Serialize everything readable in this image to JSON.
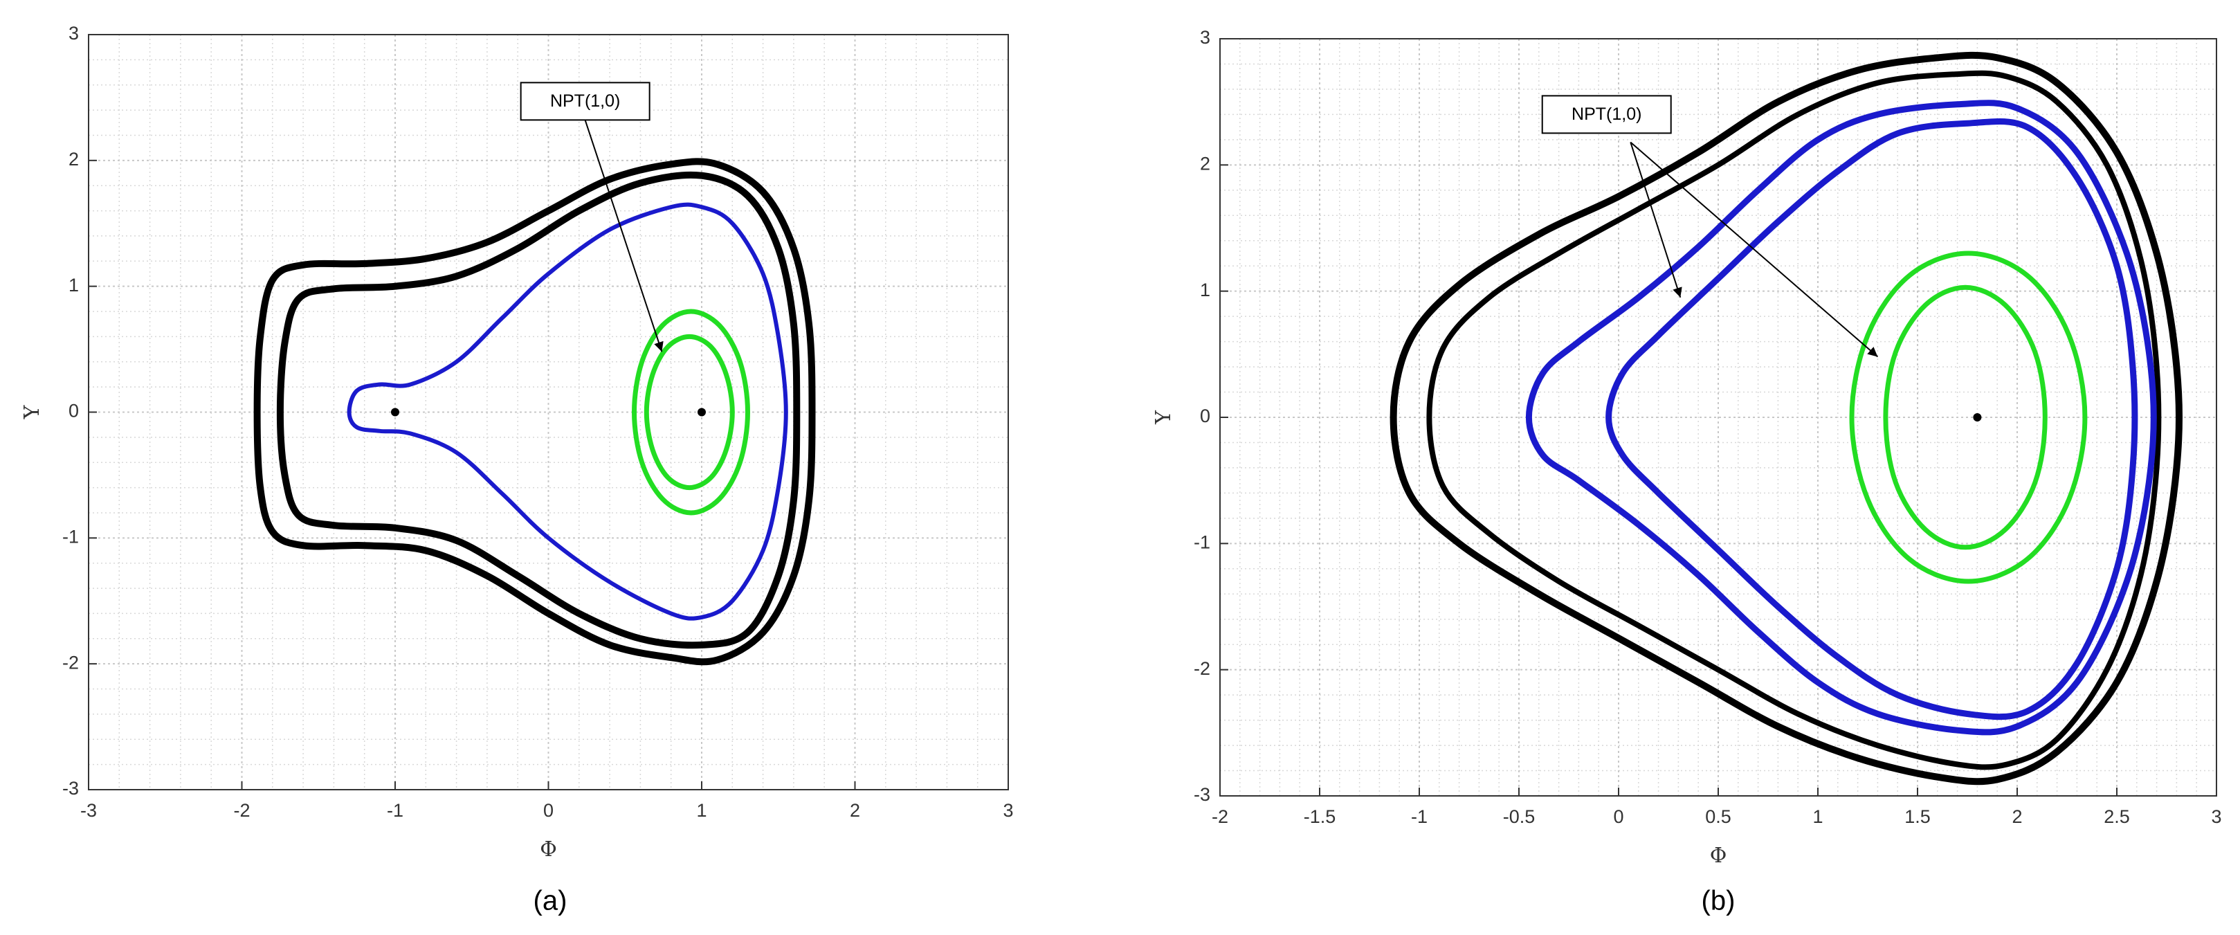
{
  "chart_data": [
    {
      "type": "line",
      "caption": "(a)",
      "xlabel": "Φ",
      "ylabel": "Y",
      "annotation": "NPT(1,0)",
      "xlim": [
        -3,
        3
      ],
      "ylim": [
        -3,
        3
      ],
      "xticks": [
        -3,
        -2,
        -1,
        0,
        1,
        2,
        3
      ],
      "yticks": [
        -3,
        -2,
        -1,
        0,
        1,
        2,
        3
      ],
      "grid": true,
      "minor_grid": true,
      "series": [
        {
          "color": "#000000",
          "line_width": 10,
          "x": [
            -1.9,
            -1.88,
            -1.8,
            -1.6,
            -1.2,
            -0.8,
            -0.4,
            0,
            0.4,
            0.8,
            1.1,
            1.4,
            1.6,
            1.7,
            1.72,
            1.7,
            1.6,
            1.4,
            1.1,
            0.8,
            0.4,
            0,
            -0.4,
            -0.8,
            -1.2,
            -1.6,
            -1.8,
            -1.88,
            -1.9
          ],
          "y": [
            0,
            0.6,
            1.05,
            1.17,
            1.18,
            1.22,
            1.35,
            1.6,
            1.85,
            1.97,
            1.97,
            1.75,
            1.3,
            0.7,
            0,
            -0.7,
            -1.3,
            -1.75,
            -1.97,
            -1.95,
            -1.85,
            -1.6,
            -1.3,
            -1.1,
            -1.06,
            -1.06,
            -0.95,
            -0.6,
            0
          ]
        },
        {
          "color": "#000000",
          "line_width": 10,
          "x": [
            -1.75,
            -1.72,
            -1.63,
            -1.4,
            -1.0,
            -0.6,
            -0.2,
            0.2,
            0.6,
            1.0,
            1.3,
            1.5,
            1.6,
            1.62,
            1.6,
            1.5,
            1.3,
            1.0,
            0.6,
            0.2,
            -0.2,
            -0.6,
            -1.0,
            -1.4,
            -1.63,
            -1.72,
            -1.75
          ],
          "y": [
            0,
            0.55,
            0.9,
            0.98,
            1.0,
            1.08,
            1.3,
            1.6,
            1.82,
            1.88,
            1.72,
            1.3,
            0.7,
            0,
            -0.7,
            -1.3,
            -1.75,
            -1.85,
            -1.8,
            -1.6,
            -1.3,
            -1.02,
            -0.92,
            -0.9,
            -0.82,
            -0.5,
            0
          ]
        },
        {
          "color": "#1a1acc",
          "line_width": 6,
          "x": [
            -1.3,
            -1.25,
            -1.1,
            -0.9,
            -0.6,
            -0.3,
            0,
            0.4,
            0.8,
            1.0,
            1.2,
            1.4,
            1.5,
            1.55,
            1.5,
            1.4,
            1.2,
            1.0,
            0.8,
            0.4,
            0,
            -0.3,
            -0.6,
            -0.9,
            -1.1,
            -1.25,
            -1.3
          ],
          "y": [
            0,
            0.17,
            0.22,
            0.22,
            0.4,
            0.75,
            1.1,
            1.45,
            1.63,
            1.63,
            1.5,
            1.1,
            0.6,
            0,
            -0.6,
            -1.1,
            -1.5,
            -1.63,
            -1.6,
            -1.35,
            -1.0,
            -0.65,
            -0.32,
            -0.17,
            -0.15,
            -0.12,
            0
          ]
        },
        {
          "color": "#22dd22",
          "line_width": 7,
          "x": [
            1.3,
            1.25,
            1.115,
            0.93,
            0.745,
            0.61,
            0.56,
            0.61,
            0.745,
            0.93,
            1.115,
            1.25,
            1.3
          ],
          "y": [
            0,
            0.4,
            0.69,
            0.8,
            0.69,
            0.4,
            0,
            -0.4,
            -0.69,
            -0.8,
            -0.69,
            -0.4,
            0
          ]
        },
        {
          "color": "#22dd22",
          "line_width": 7,
          "x": [
            1.2,
            1.16,
            1.06,
            0.92,
            0.78,
            0.68,
            0.64,
            0.68,
            0.78,
            0.92,
            1.06,
            1.16,
            1.2
          ],
          "y": [
            0,
            0.3,
            0.52,
            0.6,
            0.52,
            0.3,
            0,
            -0.3,
            -0.52,
            -0.6,
            -0.52,
            -0.3,
            0
          ]
        }
      ],
      "points": {
        "color": "#000000",
        "x": [
          -1,
          1
        ],
        "y": [
          0,
          0
        ]
      }
    },
    {
      "type": "line",
      "caption": "(b)",
      "xlabel": "Φ",
      "ylabel": "Y",
      "annotation": "NPT(1,0)",
      "xlim": [
        -2,
        3
      ],
      "ylim": [
        -3,
        3
      ],
      "xticks": [
        -2,
        -1.5,
        -1,
        -0.5,
        0,
        0.5,
        1,
        1.5,
        2,
        2.5,
        3
      ],
      "yticks": [
        -3,
        -2,
        -1,
        0,
        1,
        2,
        3
      ],
      "grid": true,
      "minor_grid": true,
      "series": [
        {
          "color": "#000000",
          "line_width": 10,
          "x": [
            -1.13,
            -1.05,
            -0.8,
            -0.4,
            0,
            0.4,
            0.8,
            1.2,
            1.6,
            1.9,
            2.2,
            2.5,
            2.7,
            2.8,
            2.8,
            2.7,
            2.5,
            2.2,
            1.9,
            1.6,
            1.2,
            0.8,
            0.4,
            0,
            -0.4,
            -0.8,
            -1.05,
            -1.13
          ],
          "y": [
            0,
            0.6,
            1.05,
            1.45,
            1.75,
            2.1,
            2.5,
            2.75,
            2.85,
            2.85,
            2.65,
            2.1,
            1.3,
            0.4,
            -0.4,
            -1.3,
            -2.1,
            -2.65,
            -2.87,
            -2.85,
            -2.7,
            -2.45,
            -2.1,
            -1.75,
            -1.4,
            -1.0,
            -0.6,
            0
          ]
        },
        {
          "color": "#000000",
          "line_width": 8,
          "x": [
            -0.95,
            -0.88,
            -0.65,
            -0.3,
            0.1,
            0.5,
            0.9,
            1.3,
            1.7,
            1.95,
            2.2,
            2.45,
            2.62,
            2.7,
            2.7,
            2.62,
            2.45,
            2.2,
            1.95,
            1.7,
            1.3,
            0.9,
            0.5,
            0.1,
            -0.3,
            -0.65,
            -0.88,
            -0.95
          ],
          "y": [
            0,
            0.55,
            0.95,
            1.3,
            1.65,
            2.0,
            2.4,
            2.65,
            2.72,
            2.7,
            2.5,
            2.0,
            1.25,
            0.4,
            -0.4,
            -1.25,
            -2.0,
            -2.55,
            -2.75,
            -2.75,
            -2.6,
            -2.35,
            -2.0,
            -1.65,
            -1.3,
            -0.92,
            -0.55,
            0
          ]
        },
        {
          "color": "#1a1acc",
          "line_width": 9,
          "x": [
            -0.45,
            -0.38,
            -0.2,
            0.1,
            0.4,
            0.7,
            1.0,
            1.3,
            1.7,
            2.0,
            2.3,
            2.55,
            2.67,
            2.67,
            2.55,
            2.3,
            2.0,
            1.7,
            1.3,
            1.0,
            0.7,
            0.4,
            0.1,
            -0.2,
            -0.38,
            -0.45
          ],
          "y": [
            0,
            0.35,
            0.6,
            0.95,
            1.35,
            1.8,
            2.2,
            2.4,
            2.48,
            2.45,
            2.1,
            1.3,
            0.4,
            -0.4,
            -1.3,
            -2.1,
            -2.45,
            -2.48,
            -2.35,
            -2.1,
            -1.7,
            -1.25,
            -0.85,
            -0.5,
            -0.3,
            0
          ]
        },
        {
          "color": "#1a1acc",
          "line_width": 9,
          "x": [
            -0.05,
            0.02,
            0.2,
            0.5,
            0.8,
            1.1,
            1.4,
            1.75,
            2.05,
            2.3,
            2.5,
            2.58,
            2.58,
            2.5,
            2.3,
            2.05,
            1.75,
            1.4,
            1.1,
            0.8,
            0.5,
            0.2,
            0.02,
            -0.05
          ],
          "y": [
            0,
            0.35,
            0.65,
            1.1,
            1.55,
            1.95,
            2.25,
            2.33,
            2.3,
            1.9,
            1.2,
            0.4,
            -0.4,
            -1.2,
            -1.95,
            -2.33,
            -2.35,
            -2.2,
            -1.9,
            -1.5,
            -1.05,
            -0.6,
            -0.3,
            0
          ]
        },
        {
          "color": "#22dd22",
          "line_width": 7,
          "x": [
            2.34,
            2.26,
            2.05,
            1.755,
            1.46,
            1.25,
            1.17,
            1.25,
            1.46,
            1.755,
            2.05,
            2.26,
            2.34
          ],
          "y": [
            0,
            0.65,
            1.125,
            1.3,
            1.125,
            0.65,
            0,
            -0.65,
            -1.125,
            -1.3,
            -1.125,
            -0.65,
            0
          ]
        },
        {
          "color": "#22dd22",
          "line_width": 7,
          "x": [
            2.14,
            2.09,
            1.94,
            1.74,
            1.54,
            1.39,
            1.34,
            1.39,
            1.54,
            1.74,
            1.94,
            2.09,
            2.14
          ],
          "y": [
            0,
            0.515,
            0.89,
            1.03,
            0.89,
            0.515,
            0,
            -0.515,
            -0.89,
            -1.03,
            -0.89,
            -0.515,
            0
          ]
        }
      ],
      "points": {
        "color": "#000000",
        "x": [
          1.8
        ],
        "y": [
          0
        ]
      }
    }
  ]
}
